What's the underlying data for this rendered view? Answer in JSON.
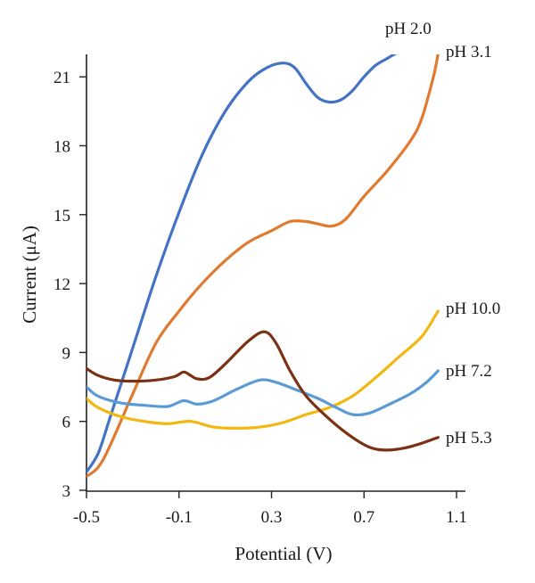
{
  "chart_data": {
    "type": "line",
    "title": "",
    "xlabel": "Potential (V)",
    "ylabel": "Current (μA)",
    "xlim": [
      -0.5,
      1.18
    ],
    "ylim": [
      3,
      22
    ],
    "xticks": [
      -0.5,
      -0.1,
      0.3,
      0.7,
      1.1
    ],
    "xtick_labels": [
      "-0.5",
      "-0.1",
      "0.3",
      "0.7",
      "1.1"
    ],
    "yticks": [
      3,
      6,
      9,
      12,
      15,
      18,
      21
    ],
    "ytick_labels": [
      "3",
      "6",
      "9",
      "12",
      "15",
      "18",
      "21"
    ],
    "grid": false,
    "legend": "none",
    "series": [
      {
        "name": "pH 2.0",
        "color": "#4472C4",
        "points": [
          [
            -0.5,
            3.8
          ],
          [
            -0.45,
            4.6
          ],
          [
            -0.4,
            6.1
          ],
          [
            -0.3,
            9.2
          ],
          [
            -0.2,
            12.3
          ],
          [
            -0.1,
            15.1
          ],
          [
            0.0,
            17.6
          ],
          [
            0.1,
            19.5
          ],
          [
            0.2,
            20.8
          ],
          [
            0.28,
            21.4
          ],
          [
            0.35,
            21.6
          ],
          [
            0.4,
            21.4
          ],
          [
            0.45,
            20.7
          ],
          [
            0.5,
            20.1
          ],
          [
            0.55,
            19.9
          ],
          [
            0.6,
            20.0
          ],
          [
            0.65,
            20.4
          ],
          [
            0.7,
            21.0
          ],
          [
            0.75,
            21.5
          ],
          [
            0.8,
            21.8
          ],
          [
            0.85,
            22.1
          ]
        ]
      },
      {
        "name": "pH 3.1",
        "color": "#E07A30",
        "points": [
          [
            -0.5,
            3.6
          ],
          [
            -0.45,
            4.0
          ],
          [
            -0.4,
            4.9
          ],
          [
            -0.3,
            7.2
          ],
          [
            -0.2,
            9.4
          ],
          [
            -0.1,
            10.8
          ],
          [
            0.0,
            12.0
          ],
          [
            0.1,
            13.0
          ],
          [
            0.2,
            13.8
          ],
          [
            0.3,
            14.3
          ],
          [
            0.38,
            14.7
          ],
          [
            0.45,
            14.7
          ],
          [
            0.5,
            14.6
          ],
          [
            0.56,
            14.5
          ],
          [
            0.62,
            14.8
          ],
          [
            0.7,
            15.8
          ],
          [
            0.8,
            16.9
          ],
          [
            0.9,
            18.2
          ],
          [
            0.95,
            19.2
          ],
          [
            1.0,
            21.0
          ],
          [
            1.02,
            22.0
          ]
        ]
      },
      {
        "name": "pH 10.0",
        "color": "#F2B80F",
        "points": [
          [
            -0.5,
            7.0
          ],
          [
            -0.45,
            6.6
          ],
          [
            -0.35,
            6.2
          ],
          [
            -0.25,
            6.0
          ],
          [
            -0.15,
            5.9
          ],
          [
            -0.05,
            6.0
          ],
          [
            0.05,
            5.75
          ],
          [
            0.15,
            5.7
          ],
          [
            0.25,
            5.75
          ],
          [
            0.35,
            5.95
          ],
          [
            0.45,
            6.3
          ],
          [
            0.55,
            6.6
          ],
          [
            0.65,
            7.1
          ],
          [
            0.75,
            7.9
          ],
          [
            0.85,
            8.8
          ],
          [
            0.95,
            9.7
          ],
          [
            1.02,
            10.8
          ]
        ]
      },
      {
        "name": "pH 7.2",
        "color": "#5B9BD5",
        "points": [
          [
            -0.5,
            7.5
          ],
          [
            -0.45,
            7.1
          ],
          [
            -0.35,
            6.8
          ],
          [
            -0.25,
            6.7
          ],
          [
            -0.15,
            6.65
          ],
          [
            -0.08,
            6.9
          ],
          [
            -0.02,
            6.75
          ],
          [
            0.05,
            6.9
          ],
          [
            0.15,
            7.4
          ],
          [
            0.25,
            7.8
          ],
          [
            0.32,
            7.7
          ],
          [
            0.4,
            7.4
          ],
          [
            0.5,
            7.0
          ],
          [
            0.58,
            6.6
          ],
          [
            0.65,
            6.3
          ],
          [
            0.72,
            6.35
          ],
          [
            0.8,
            6.7
          ],
          [
            0.9,
            7.2
          ],
          [
            0.97,
            7.7
          ],
          [
            1.02,
            8.2
          ]
        ]
      },
      {
        "name": "pH 5.3",
        "color": "#7B3114",
        "points": [
          [
            -0.5,
            8.3
          ],
          [
            -0.45,
            8.0
          ],
          [
            -0.38,
            7.8
          ],
          [
            -0.3,
            7.75
          ],
          [
            -0.2,
            7.8
          ],
          [
            -0.12,
            7.95
          ],
          [
            -0.08,
            8.15
          ],
          [
            -0.05,
            8.0
          ],
          [
            -0.02,
            7.85
          ],
          [
            0.03,
            7.9
          ],
          [
            0.1,
            8.5
          ],
          [
            0.2,
            9.5
          ],
          [
            0.27,
            9.9
          ],
          [
            0.32,
            9.4
          ],
          [
            0.38,
            8.2
          ],
          [
            0.45,
            7.1
          ],
          [
            0.55,
            6.1
          ],
          [
            0.65,
            5.3
          ],
          [
            0.73,
            4.85
          ],
          [
            0.8,
            4.75
          ],
          [
            0.88,
            4.85
          ],
          [
            0.95,
            5.05
          ],
          [
            1.02,
            5.3
          ]
        ]
      }
    ]
  }
}
